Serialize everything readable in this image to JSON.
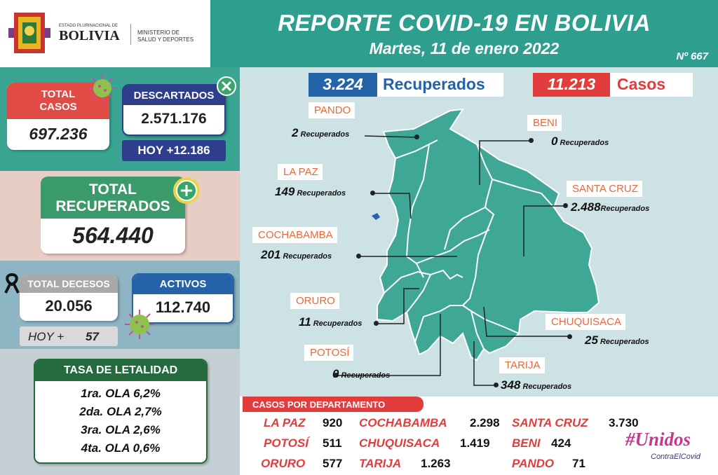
{
  "header": {
    "logo_small_text": "ESTADO PLURINACIONAL DE",
    "logo_country": "BOLIVIA",
    "ministry_line1": "MINISTERIO DE",
    "ministry_line2": "SALUD Y DEPORTES",
    "title": "REPORTE COVID-19 EN BOLIVIA",
    "date": "Martes, 11 de enero 2022",
    "report_number": "Nº 667"
  },
  "left": {
    "total_casos_label1": "TOTAL",
    "total_casos_label2": "CASOS",
    "total_casos_value": "697.236",
    "descartados_label": "DESCARTADOS",
    "descartados_value": "2.571.176",
    "descartados_hoy": "HOY +12.186",
    "total_recuperados_label1": "TOTAL",
    "total_recuperados_label2": "RECUPERADOS",
    "total_recuperados_value": "564.440",
    "total_decesos_label": "TOTAL DECESOS",
    "total_decesos_value": "20.056",
    "decesos_hoy_label": "HOY +",
    "decesos_hoy_value": "57",
    "activos_label": "ACTIVOS",
    "activos_value": "112.740",
    "letalidad_title": "TASA DE LETALIDAD",
    "olas": [
      "1ra. OLA 6,2%",
      "2da. OLA 2,7%",
      "3ra. OLA 2,6%",
      "4ta. OLA 0,6%"
    ]
  },
  "summary": {
    "recuperados_value": "3.224",
    "recuperados_label": "Recuperados",
    "casos_value": "11.213",
    "casos_label": "Casos"
  },
  "recuperados_word": "Recuperados",
  "departments": {
    "pando": {
      "name": "PANDO",
      "recovered": "2"
    },
    "beni": {
      "name": "BENI",
      "recovered": "0"
    },
    "la_paz": {
      "name": "LA PAZ",
      "recovered": "149"
    },
    "santa_cruz": {
      "name": "SANTA CRUZ",
      "recovered": "2.488"
    },
    "cochabamba": {
      "name": "COCHABAMBA",
      "recovered": "201"
    },
    "oruro": {
      "name": "ORURO",
      "recovered": "11"
    },
    "chuquisaca": {
      "name": "CHUQUISACA",
      "recovered": "25"
    },
    "potosi": {
      "name": "POTOSÍ",
      "recovered": "0"
    },
    "tarija": {
      "name": "TARIJA",
      "recovered": "348"
    }
  },
  "casos_por_departamento": {
    "title": "CASOS POR DEPARTAMENTO",
    "rows": [
      [
        {
          "name": "LA PAZ",
          "value": "920"
        },
        {
          "name": "COCHABAMBA",
          "value": "2.298"
        },
        {
          "name": "SANTA CRUZ",
          "value": "3.730"
        }
      ],
      [
        {
          "name": "POTOSÍ",
          "value": "511"
        },
        {
          "name": "CHUQUISACA",
          "value": "1.419"
        },
        {
          "name": "BENI",
          "value": "424"
        }
      ],
      [
        {
          "name": "ORURO",
          "value": "577"
        },
        {
          "name": "TARIJA",
          "value": "1.263"
        },
        {
          "name": "PANDO",
          "value": "71"
        }
      ]
    ]
  },
  "campaign": {
    "hashtag": "#Unidos",
    "subline": "ContraElCovid"
  },
  "colors": {
    "teal": "#3aa593",
    "red": "#e23c3c",
    "navy": "#2e3d8c",
    "blue": "#2463a8",
    "green": "#3a9a4a",
    "map_fill": "#3fa796"
  },
  "icons": [
    "virus-icon",
    "close-circle-icon",
    "plus-circle-icon",
    "mourning-ribbon-icon"
  ]
}
